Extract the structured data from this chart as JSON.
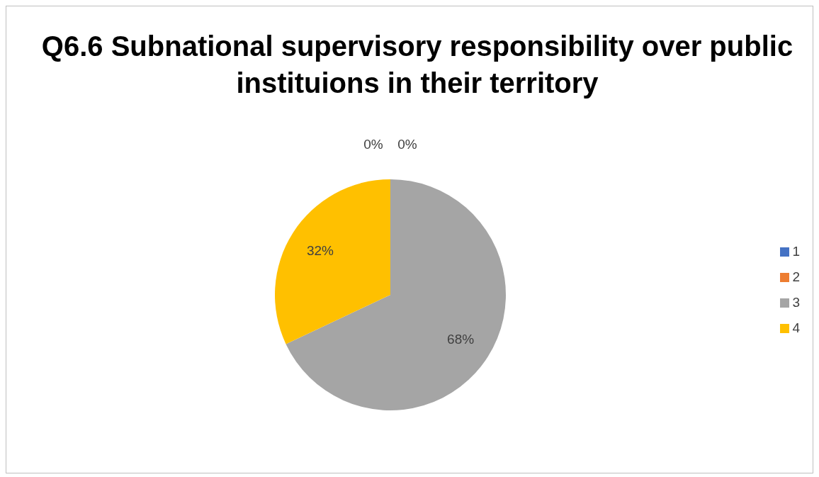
{
  "chart_data": {
    "type": "pie",
    "title": "Q6.6 Subnational supervisory responsibility over public instituions in their territory",
    "categories": [
      "1",
      "2",
      "3",
      "4"
    ],
    "values": [
      0,
      0,
      68,
      32
    ],
    "colors": [
      "#4472c4",
      "#ed7d31",
      "#a5a5a5",
      "#ffc000"
    ],
    "value_labels": [
      "0%",
      "0%",
      "68%",
      "32%"
    ],
    "legend": "right"
  }
}
